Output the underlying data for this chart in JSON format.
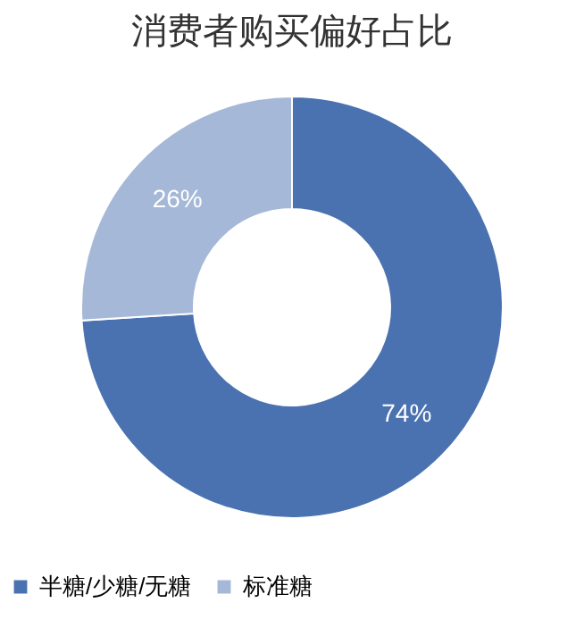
{
  "chart_data": {
    "type": "donut",
    "title": "消费者购买偏好占比",
    "categories": [
      "半糖/少糖/无糖",
      "标准糖"
    ],
    "values": [
      74,
      26
    ],
    "colors": [
      "#4a72b0",
      "#a5b8d8"
    ],
    "value_labels": [
      "74%",
      "26%"
    ],
    "legend": "bottom"
  }
}
